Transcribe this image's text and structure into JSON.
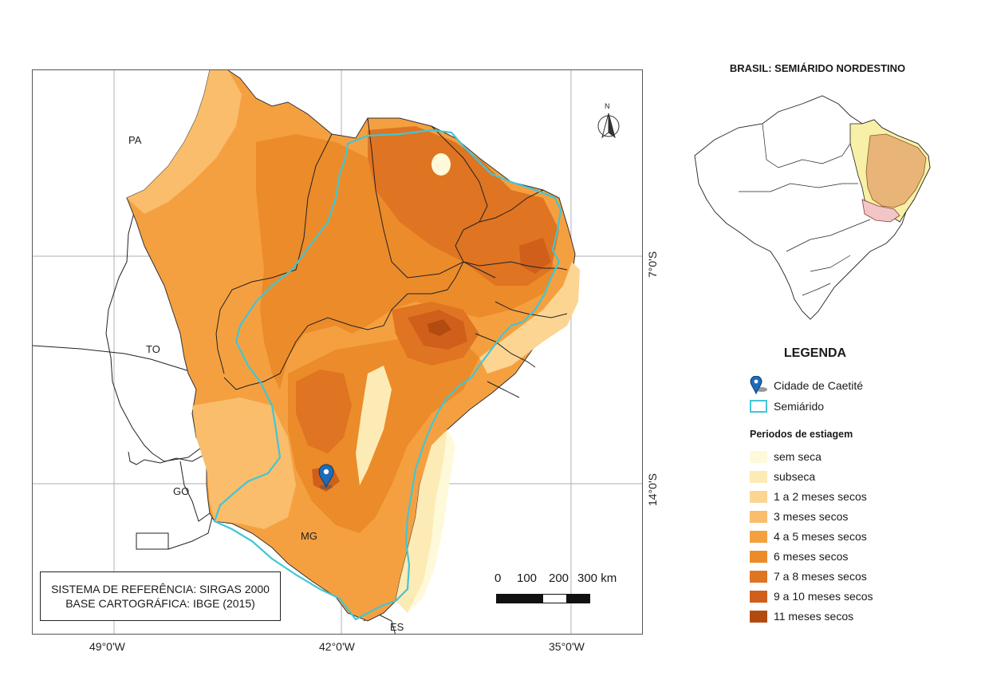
{
  "map": {
    "coords_top_left": [
      "49°0'W",
      "42°0'W",
      "35°0'W"
    ],
    "coords_right": [
      "7°0'S",
      "14°0'S"
    ],
    "state_labels": [
      "PA",
      "TO",
      "GO",
      "MG",
      "ES"
    ],
    "north_label": "N"
  },
  "reference": {
    "line1": "SISTEMA DE REFERÊNCIA: SIRGAS 2000",
    "line2": "BASE CARTOGRÁFICA: IBGE (2015)"
  },
  "scale": {
    "ticks": [
      "0",
      "100",
      "200",
      "300 km"
    ]
  },
  "inset": {
    "title": "BRASIL: SEMIÁRIDO NORDESTINO"
  },
  "legend": {
    "title": "LEGENDA",
    "city": "Cidade de Caetité",
    "semiarid": "Semiárido",
    "subtitle": "Periodos de estiagem",
    "classes": [
      {
        "label": "sem seca",
        "color": "#fef9d9"
      },
      {
        "label": "subseca",
        "color": "#fdebb6"
      },
      {
        "label": "1 a 2 meses secos",
        "color": "#fcd593"
      },
      {
        "label": "3 meses secos",
        "color": "#f9bd6c"
      },
      {
        "label": "4 a 5 meses secos",
        "color": "#f5a040"
      },
      {
        "label": "6 meses secos",
        "color": "#ec8b2a"
      },
      {
        "label": "7 a 8 meses secos",
        "color": "#df7422"
      },
      {
        "label": "9 a 10 meses secos",
        "color": "#cf5f1a"
      },
      {
        "label": "11 meses secos",
        "color": "#b34b10"
      }
    ],
    "semiarid_color": "#41c6d4",
    "city_color": "#1e6bb8"
  }
}
